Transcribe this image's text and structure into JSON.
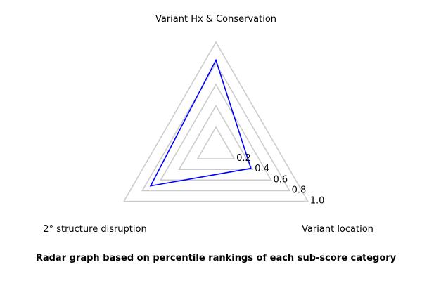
{
  "chart_data": {
    "type": "radar",
    "caption": "Radar graph based on percentile rankings of each sub-score category",
    "axes": [
      "Variant Hx & Conservation",
      "Variant location",
      "2° structure disruption"
    ],
    "rlim": [
      0,
      1.0
    ],
    "ticks": [
      0.2,
      0.4,
      0.6,
      0.8,
      1.0
    ],
    "tick_labels": [
      "0.2",
      "0.4",
      "0.6",
      "0.8",
      "1.0"
    ],
    "grid": true,
    "series": [
      {
        "values": [
          0.83,
          0.38,
          0.71
        ],
        "color": "#0000ff"
      }
    ],
    "grid_color": "#cccccc"
  }
}
